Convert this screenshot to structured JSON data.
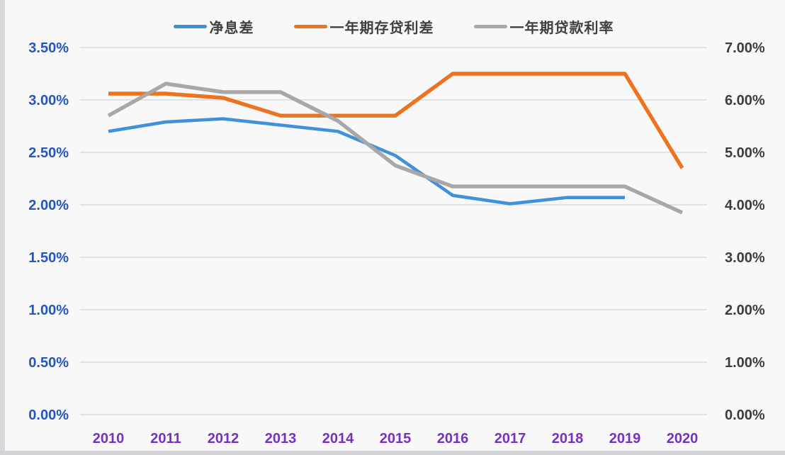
{
  "page": {
    "background": "#f8f8f9"
  },
  "legend": {
    "items": [
      {
        "label": "净息差",
        "color": "#4191d9"
      },
      {
        "label": "一年期存贷利差",
        "color": "#ed7321"
      },
      {
        "label": "一年期贷款利率",
        "color": "#a8a8a8"
      }
    ]
  },
  "left_axis": {
    "tick_labels": [
      "3.50%",
      "3.00%",
      "2.50%",
      "2.00%",
      "1.50%",
      "1.00%",
      "0.50%",
      "0.00%"
    ],
    "color": "#2356c0"
  },
  "right_axis": {
    "tick_labels": [
      "7.00%",
      "6.00%",
      "5.00%",
      "4.00%",
      "3.00%",
      "2.00%",
      "1.00%",
      "0.00%"
    ],
    "color": "#3d3d3d"
  },
  "x_axis": {
    "tick_labels": [
      "2010",
      "2011",
      "2012",
      "2013",
      "2014",
      "2015",
      "2016",
      "2017",
      "2018",
      "2019",
      "2020"
    ],
    "color": "#7830c0"
  },
  "chart_data": {
    "type": "line",
    "categories": [
      2010,
      2011,
      2012,
      2013,
      2014,
      2015,
      2016,
      2017,
      2018,
      2019,
      2020
    ],
    "series": [
      {
        "name": "净息差",
        "axis": "left",
        "color": "#4191d9",
        "values": [
          2.7,
          2.79,
          2.82,
          2.76,
          2.7,
          2.47,
          2.09,
          2.01,
          2.07,
          2.07,
          null
        ]
      },
      {
        "name": "一年期存贷利差",
        "axis": "left",
        "color": "#ed7321",
        "values": [
          3.06,
          3.06,
          3.02,
          2.85,
          2.85,
          2.85,
          3.25,
          3.25,
          3.25,
          3.25,
          2.35
        ]
      },
      {
        "name": "一年期贷款利率",
        "axis": "right",
        "color": "#a8a8a8",
        "values": [
          5.7,
          6.31,
          6.15,
          6.15,
          5.6,
          4.75,
          4.35,
          4.35,
          4.35,
          4.35,
          3.85
        ]
      }
    ],
    "left_ylim": [
      0,
      3.5
    ],
    "right_ylim": [
      0,
      7.0
    ],
    "grid": true,
    "legend_position": "top",
    "title": "",
    "xlabel": "",
    "ylabel_left": "",
    "ylabel_right": ""
  }
}
